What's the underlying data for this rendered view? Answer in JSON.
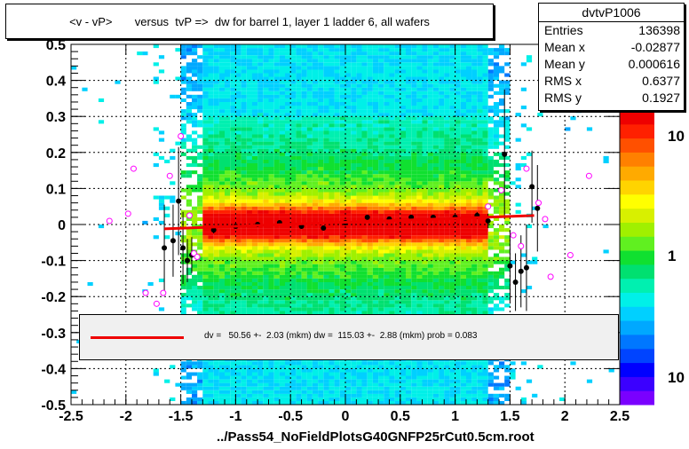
{
  "title": "<v - vP>       versus  tvP =>  dw for barrel 1, layer 1 ladder 6, all wafers",
  "stats": {
    "name": "dvtvP1006",
    "rows": [
      {
        "label": "Entries",
        "value": "136398"
      },
      {
        "label": "Mean x",
        "value": "-0.02877"
      },
      {
        "label": "Mean y",
        "value": "0.000616"
      },
      {
        "label": "RMS x",
        "value": "0.6377"
      },
      {
        "label": "RMS y",
        "value": "0.1927"
      }
    ]
  },
  "fit_legend": "dv =   50.56 +-  2.03 (mkm) dw =  115.03 +-  2.88 (mkm) prob = 0.083",
  "x_axis_title": "../Pass54_NoFieldPlotsG40GNFP25rCut0.5cm.root",
  "colors": {
    "fit_line": "#ee0000",
    "profile_points": "#000000",
    "open_markers": "#ff00ff"
  },
  "chart_data": {
    "type": "heatmap",
    "title": "<v - vP>       versus  tvP =>  dw for barrel 1, layer 1 ladder 6, all wafers",
    "xlim": [
      -2.5,
      2.5
    ],
    "ylim": [
      -0.5,
      0.5
    ],
    "x_ticks": [
      "-2.5",
      "-2",
      "-1.5",
      "-1",
      "-0.5",
      "0",
      "0.5",
      "1",
      "1.5",
      "2",
      "2.5"
    ],
    "y_ticks": [
      "-0.5",
      "-0.4",
      "-0.3",
      "-0.2",
      "-0.1",
      "0",
      "0.1",
      "0.2",
      "0.3",
      "0.4",
      "0.5"
    ],
    "z_scale": "log",
    "z_ticks": [
      "10",
      "1",
      "10"
    ],
    "grid": true,
    "fit_line": {
      "x": [
        -1.65,
        1.72
      ],
      "y": [
        -0.012,
        0.025
      ]
    },
    "profile_points": {
      "x": [
        -1.65,
        -1.57,
        -1.52,
        -1.48,
        -1.44,
        -1.4,
        -1.2,
        -1.0,
        -0.8,
        -0.6,
        -0.4,
        -0.2,
        0.0,
        0.2,
        0.4,
        0.6,
        0.8,
        1.0,
        1.2,
        1.3,
        1.45,
        1.5,
        1.55,
        1.6,
        1.65,
        1.7,
        1.75
      ],
      "y": [
        -0.065,
        -0.045,
        0.065,
        -0.065,
        -0.1,
        -0.085,
        -0.015,
        -0.005,
        0.0,
        0.005,
        -0.005,
        -0.01,
        0.005,
        0.02,
        0.015,
        0.02,
        0.02,
        0.02,
        0.025,
        0.01,
        0.195,
        -0.115,
        -0.16,
        -0.13,
        -0.12,
        0.105,
        0.045
      ],
      "err": [
        0.12,
        0.1,
        0.15,
        0.1,
        0.06,
        0.05,
        0.01,
        0.005,
        0.005,
        0.005,
        0.005,
        0.005,
        0.005,
        0.005,
        0.005,
        0.005,
        0.005,
        0.005,
        0.01,
        0.02,
        0.18,
        0.1,
        0.08,
        0.1,
        0.12,
        0.1,
        0.12
      ]
    },
    "open_markers": {
      "x": [
        -2.15,
        -1.98,
        -1.93,
        -1.82,
        -1.72,
        -1.66,
        -1.6,
        -1.5,
        -1.42,
        -1.38,
        -1.35,
        1.3,
        1.42,
        1.53,
        1.6,
        1.65,
        1.76,
        1.82,
        1.87,
        2.05,
        2.22
      ],
      "y": [
        0.01,
        0.03,
        0.155,
        -0.19,
        -0.22,
        -0.19,
        0.135,
        0.245,
        0.025,
        -0.08,
        -0.09,
        0.05,
        0.095,
        -0.03,
        -0.06,
        0.155,
        0.06,
        0.015,
        -0.145,
        -0.085,
        0.135
      ]
    }
  }
}
